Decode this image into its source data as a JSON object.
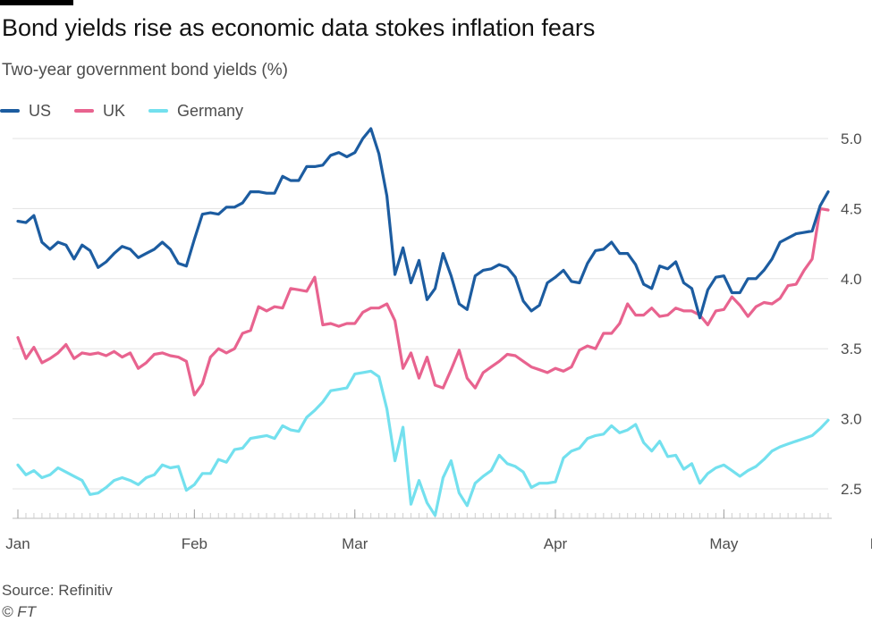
{
  "header": {
    "title": "Bond yields rise as economic data stokes inflation fears",
    "subtitle": "Two-year government bond yields (%)"
  },
  "footer": {
    "source": "Source: Refinitiv",
    "credit": "© FT"
  },
  "chart_data": {
    "type": "line",
    "title": "Bond yields rise as economic data stokes inflation fears",
    "subtitle": "Two-year government bond yields (%)",
    "xlabel": "",
    "ylabel": "",
    "ylim": [
      2.35,
      5.1
    ],
    "y_ticks": [
      2.5,
      3.0,
      3.5,
      4.0,
      4.5,
      5.0
    ],
    "y_tick_labels": [
      "2.5",
      "3.0",
      "3.5",
      "4.0",
      "4.5",
      "5.0"
    ],
    "y_axis_side": "right",
    "grid": true,
    "legend_position": "top-left",
    "x_tick_labels": [
      "Jan",
      "Feb",
      "Mar",
      "Apr",
      "May",
      "May"
    ],
    "x_tick_index": [
      0,
      22,
      42,
      67,
      88,
      108
    ],
    "series": [
      {
        "name": "US",
        "color": "#1c5ca0",
        "values": [
          4.41,
          4.4,
          4.45,
          4.26,
          4.21,
          4.26,
          4.24,
          4.14,
          4.24,
          4.2,
          4.08,
          4.12,
          4.18,
          4.23,
          4.21,
          4.15,
          4.18,
          4.21,
          4.26,
          4.21,
          4.11,
          4.09,
          4.28,
          4.46,
          4.47,
          4.46,
          4.51,
          4.51,
          4.54,
          4.62,
          4.62,
          4.61,
          4.61,
          4.73,
          4.7,
          4.7,
          4.8,
          4.8,
          4.81,
          4.88,
          4.9,
          4.87,
          4.9,
          5.0,
          5.07,
          4.89,
          4.59,
          4.03,
          4.22,
          3.97,
          4.13,
          3.85,
          3.93,
          4.18,
          4.02,
          3.82,
          3.78,
          4.02,
          4.06,
          4.07,
          4.1,
          4.08,
          4.01,
          3.84,
          3.77,
          3.81,
          3.97,
          4.01,
          4.06,
          3.98,
          3.97,
          4.11,
          4.2,
          4.21,
          4.26,
          4.18,
          4.18,
          4.1,
          3.96,
          3.93,
          4.09,
          4.07,
          4.12,
          3.97,
          3.93,
          3.72,
          3.92,
          4.01,
          4.02,
          3.9,
          3.9,
          4.0,
          4.0,
          4.06,
          4.14,
          4.26,
          4.29,
          4.32,
          4.33,
          4.34,
          4.52,
          4.62
        ]
      },
      {
        "name": "UK",
        "color": "#e8638f",
        "values": [
          3.58,
          3.43,
          3.51,
          3.4,
          3.43,
          3.47,
          3.53,
          3.43,
          3.47,
          3.46,
          3.47,
          3.45,
          3.48,
          3.44,
          3.47,
          3.36,
          3.4,
          3.46,
          3.47,
          3.45,
          3.44,
          3.41,
          3.17,
          3.25,
          3.44,
          3.5,
          3.47,
          3.5,
          3.61,
          3.63,
          3.8,
          3.77,
          3.8,
          3.79,
          3.93,
          3.92,
          3.91,
          4.01,
          3.67,
          3.68,
          3.66,
          3.68,
          3.68,
          3.76,
          3.79,
          3.79,
          3.82,
          3.7,
          3.36,
          3.47,
          3.29,
          3.44,
          3.24,
          3.22,
          3.35,
          3.49,
          3.29,
          3.22,
          3.33,
          3.37,
          3.41,
          3.46,
          3.45,
          3.41,
          3.37,
          3.35,
          3.33,
          3.36,
          3.34,
          3.37,
          3.49,
          3.52,
          3.5,
          3.61,
          3.61,
          3.68,
          3.82,
          3.74,
          3.74,
          3.79,
          3.73,
          3.74,
          3.79,
          3.77,
          3.77,
          3.74,
          3.67,
          3.77,
          3.78,
          3.87,
          3.81,
          3.73,
          3.8,
          3.83,
          3.82,
          3.86,
          3.95,
          3.96,
          4.06,
          4.14,
          4.5,
          4.49
        ]
      },
      {
        "name": "Germany",
        "color": "#73e0ee",
        "values": [
          2.67,
          2.6,
          2.63,
          2.58,
          2.6,
          2.65,
          2.62,
          2.59,
          2.56,
          2.46,
          2.47,
          2.51,
          2.56,
          2.58,
          2.56,
          2.53,
          2.58,
          2.6,
          2.67,
          2.65,
          2.66,
          2.49,
          2.53,
          2.61,
          2.61,
          2.71,
          2.69,
          2.78,
          2.79,
          2.86,
          2.87,
          2.88,
          2.86,
          2.95,
          2.92,
          2.91,
          3.01,
          3.06,
          3.12,
          3.2,
          3.21,
          3.22,
          3.32,
          3.33,
          3.34,
          3.3,
          3.07,
          2.7,
          2.94,
          2.39,
          2.56,
          2.4,
          2.31,
          2.58,
          2.7,
          2.47,
          2.38,
          2.54,
          2.59,
          2.63,
          2.74,
          2.68,
          2.66,
          2.62,
          2.51,
          2.54,
          2.54,
          2.55,
          2.72,
          2.77,
          2.79,
          2.86,
          2.88,
          2.89,
          2.95,
          2.9,
          2.92,
          2.96,
          2.83,
          2.77,
          2.84,
          2.73,
          2.74,
          2.64,
          2.68,
          2.54,
          2.61,
          2.65,
          2.67,
          2.63,
          2.59,
          2.63,
          2.66,
          2.71,
          2.77,
          2.8,
          2.82,
          2.84,
          2.86,
          2.88,
          2.93,
          2.99
        ]
      }
    ]
  }
}
